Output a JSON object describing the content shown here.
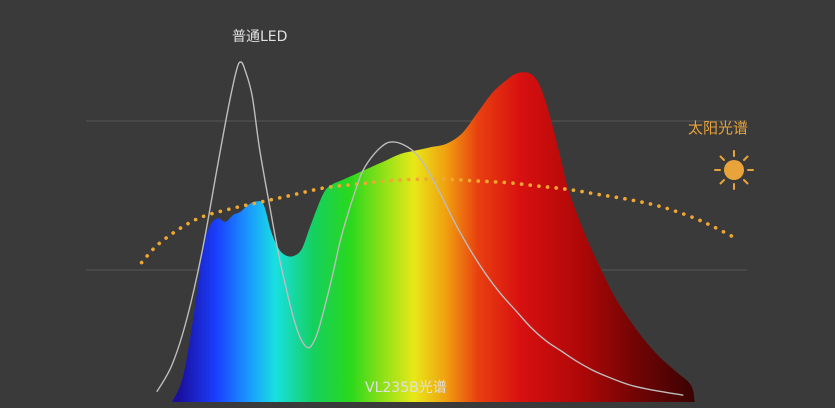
{
  "chart_data": {
    "type": "area",
    "title": "",
    "xlabel": "",
    "ylabel": "",
    "grid": true,
    "x_domain": [
      0,
      100
    ],
    "y_domain": [
      0,
      100
    ],
    "series": [
      {
        "name": "VL235B光谱",
        "style": "rainbow-fill",
        "points": [
          [
            16,
            0
          ],
          [
            17.5,
            8
          ],
          [
            19,
            28
          ],
          [
            20,
            45
          ],
          [
            21,
            52
          ],
          [
            22,
            54
          ],
          [
            23,
            53
          ],
          [
            24,
            55
          ],
          [
            25,
            56
          ],
          [
            26,
            58
          ],
          [
            27,
            59
          ],
          [
            28,
            58
          ],
          [
            29,
            50
          ],
          [
            30,
            45
          ],
          [
            31,
            43
          ],
          [
            32,
            43
          ],
          [
            33,
            45
          ],
          [
            34,
            51
          ],
          [
            35,
            57
          ],
          [
            36,
            62
          ],
          [
            37,
            64
          ],
          [
            38,
            65
          ],
          [
            39,
            66
          ],
          [
            40,
            67
          ],
          [
            42,
            69
          ],
          [
            44,
            71
          ],
          [
            46,
            73
          ],
          [
            48,
            74
          ],
          [
            50,
            75
          ],
          [
            52,
            76
          ],
          [
            54,
            79
          ],
          [
            56,
            85
          ],
          [
            58,
            91
          ],
          [
            60,
            95
          ],
          [
            61,
            96.5
          ],
          [
            62,
            97
          ],
          [
            63,
            96.5
          ],
          [
            64,
            94
          ],
          [
            65,
            88
          ],
          [
            66,
            80
          ],
          [
            67,
            71
          ],
          [
            68,
            62
          ],
          [
            70,
            50
          ],
          [
            72,
            40
          ],
          [
            74,
            31
          ],
          [
            76,
            24
          ],
          [
            78,
            18
          ],
          [
            80,
            13
          ],
          [
            82,
            9
          ],
          [
            84,
            5
          ],
          [
            84.5,
            0
          ]
        ]
      },
      {
        "name": "普通LED",
        "style": "line",
        "points": [
          [
            14,
            3
          ],
          [
            16,
            11
          ],
          [
            18,
            25
          ],
          [
            20,
            45
          ],
          [
            22,
            70
          ],
          [
            23.5,
            88
          ],
          [
            24.5,
            98
          ],
          [
            25,
            100
          ],
          [
            25.5,
            98
          ],
          [
            26.5,
            90
          ],
          [
            27.5,
            74
          ],
          [
            29,
            55
          ],
          [
            30,
            43
          ],
          [
            31,
            33
          ],
          [
            32,
            24
          ],
          [
            33,
            18
          ],
          [
            34,
            16
          ],
          [
            35,
            20
          ],
          [
            36,
            28
          ],
          [
            37,
            37
          ],
          [
            38,
            47
          ],
          [
            39,
            55
          ],
          [
            40,
            62
          ],
          [
            41,
            68
          ],
          [
            42.5,
            73
          ],
          [
            44,
            76
          ],
          [
            45,
            76.5
          ],
          [
            46,
            76
          ],
          [
            47.5,
            74
          ],
          [
            49,
            70
          ],
          [
            51,
            62
          ],
          [
            53,
            53
          ],
          [
            55,
            45
          ],
          [
            57,
            38
          ],
          [
            59,
            32
          ],
          [
            61,
            27
          ],
          [
            63,
            22
          ],
          [
            65,
            18
          ],
          [
            67,
            15
          ],
          [
            69,
            12
          ],
          [
            71,
            9.5
          ],
          [
            73,
            7.5
          ],
          [
            76,
            5
          ],
          [
            79,
            3.5
          ],
          [
            83,
            2
          ]
        ]
      },
      {
        "name": "太阳光谱",
        "style": "dotted",
        "points": [
          [
            12,
            41
          ],
          [
            14,
            46
          ],
          [
            17,
            51
          ],
          [
            20,
            54.5
          ],
          [
            24,
            57
          ],
          [
            28,
            59
          ],
          [
            32,
            61
          ],
          [
            36,
            63
          ],
          [
            40,
            64
          ],
          [
            44,
            65
          ],
          [
            48,
            65.5
          ],
          [
            52,
            65.5
          ],
          [
            56,
            65
          ],
          [
            60,
            64.5
          ],
          [
            64,
            63.5
          ],
          [
            68,
            62.5
          ],
          [
            72,
            61
          ],
          [
            76,
            59.5
          ],
          [
            80,
            57.5
          ],
          [
            84,
            54.5
          ],
          [
            87,
            51.5
          ],
          [
            90,
            48
          ]
        ]
      }
    ]
  },
  "labels": {
    "led": "普通LED",
    "sun": "太阳光谱",
    "vl": "VL235B光谱"
  },
  "colors": {
    "background": "#3a3a3a",
    "grid": "#555555",
    "led_line": "#bdbdbd",
    "sun_dots": "#f0a830",
    "sun_label": "#e8a33a",
    "sun_icon": "#e8a33a",
    "label_text": "#e0e0e0"
  },
  "icons": {
    "sun": "sun-icon"
  }
}
